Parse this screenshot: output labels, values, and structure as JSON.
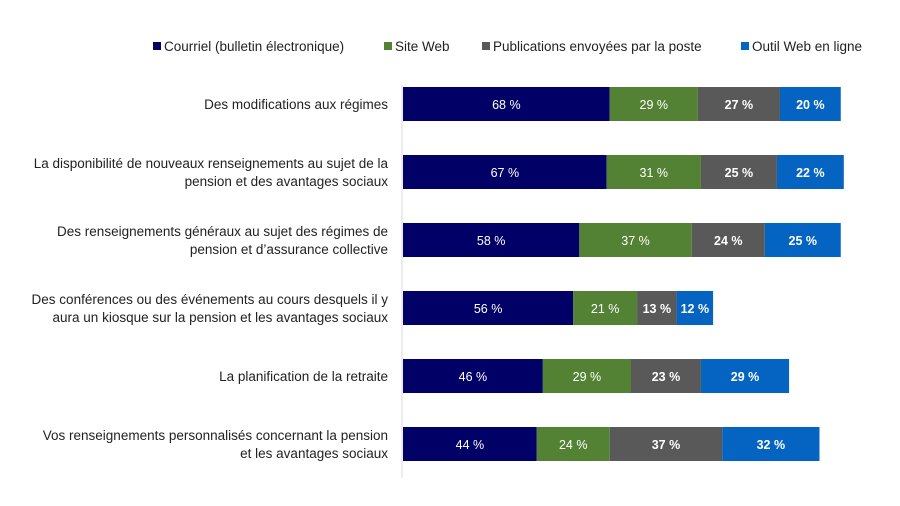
{
  "chart_data": {
    "type": "bar",
    "orientation": "horizontal",
    "stacked": true,
    "legend_position": "top",
    "grid": false,
    "categories": [
      [
        "Des modifications aux régimes"
      ],
      [
        "La disponibilité de nouveaux renseignements au sujet de la",
        "pension et des avantages sociaux"
      ],
      [
        "Des renseignements généraux au sujet des régimes de",
        "pension et d’assurance collective"
      ],
      [
        "Des conférences ou des événements au cours desquels il y",
        "aura un kiosque sur la pension et les avantages sociaux"
      ],
      [
        "La planification de la retraite"
      ],
      [
        "Vos renseignements personnalisés concernant la pension",
        "et les avantages sociaux"
      ]
    ],
    "series": [
      {
        "name": "Courriel (bulletin électronique)",
        "color": "#000066",
        "bold": false,
        "values": [
          68,
          67,
          58,
          56,
          46,
          44
        ]
      },
      {
        "name": "Site Web",
        "color": "#548235",
        "bold": false,
        "values": [
          29,
          31,
          37,
          21,
          29,
          24
        ]
      },
      {
        "name": "Publications envoyées par la poste",
        "color": "#595959",
        "bold": true,
        "values": [
          27,
          25,
          24,
          13,
          23,
          37
        ]
      },
      {
        "name": "Outil Web en ligne",
        "color": "#0563C1",
        "bold": true,
        "values": [
          20,
          22,
          25,
          12,
          29,
          32
        ]
      }
    ],
    "value_suffix": " %"
  }
}
